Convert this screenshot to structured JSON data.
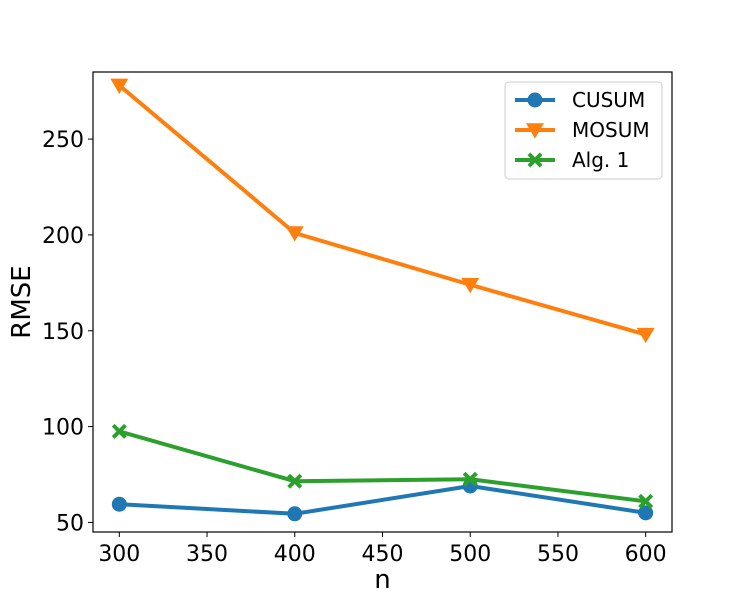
{
  "chart_data": {
    "type": "line",
    "x": [
      300,
      400,
      500,
      600
    ],
    "xlabel": "n",
    "ylabel": "RMSE",
    "xlim": [
      285,
      615
    ],
    "ylim": [
      45,
      285
    ],
    "xticks": [
      300,
      350,
      400,
      450,
      500,
      550,
      600
    ],
    "yticks": [
      50,
      100,
      150,
      200,
      250
    ],
    "grid": false,
    "legend_position": "top-right",
    "series": [
      {
        "name": "CUSUM",
        "color": "#1f77b4",
        "marker": "circle",
        "values": [
          59.5,
          54.5,
          69,
          55
        ]
      },
      {
        "name": "MOSUM",
        "color": "#ff7f0e",
        "marker": "triangle-down",
        "values": [
          278,
          201,
          174,
          148
        ]
      },
      {
        "name": "Alg. 1",
        "color": "#2ca02c",
        "marker": "x-filled",
        "values": [
          97.5,
          71.5,
          72.5,
          61
        ]
      }
    ]
  }
}
